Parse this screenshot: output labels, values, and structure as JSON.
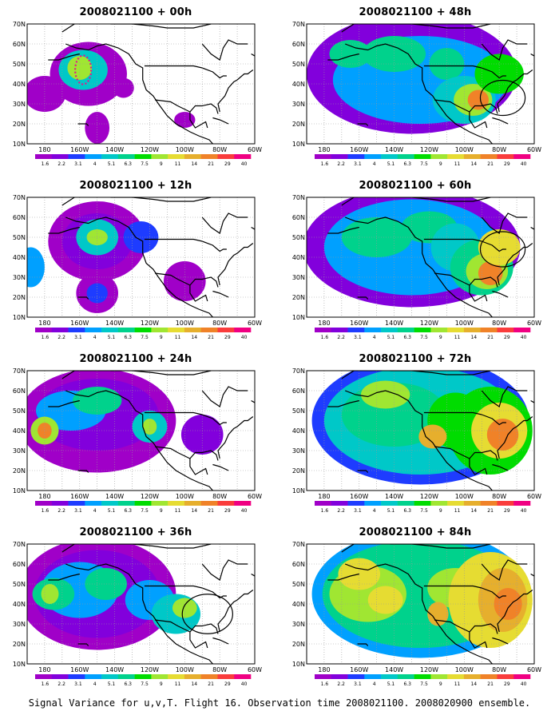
{
  "maps": [
    {
      "title": "2008021100 + 00h",
      "fh": 0
    },
    {
      "title": "2008021100 + 12h",
      "fh": 12
    },
    {
      "title": "2008021100 + 24h",
      "fh": 24
    },
    {
      "title": "2008021100 + 36h",
      "fh": 36
    },
    {
      "title": "2008021100 + 48h",
      "fh": 48
    },
    {
      "title": "2008021100 + 60h",
      "fh": 60
    },
    {
      "title": "2008021100 + 72h",
      "fh": 72
    },
    {
      "title": "2008021100 + 84h",
      "fh": 84
    }
  ],
  "lat_labels": [
    "70N",
    "60N",
    "50N",
    "40N",
    "30N",
    "20N",
    "10N"
  ],
  "lon_labels": [
    "180",
    "160W",
    "140W",
    "120W",
    "100W",
    "80W",
    "60W"
  ],
  "colorbar": {
    "labels": [
      "1.6",
      "2.2",
      "3.1",
      "4",
      "5.1",
      "6.3",
      "7.5",
      "9",
      "11",
      "14",
      "21",
      "29",
      "40"
    ],
    "colors": [
      "#a000c8",
      "#8200dc",
      "#1e3cff",
      "#00a0ff",
      "#00c8c8",
      "#00d28c",
      "#00dc00",
      "#a0e632",
      "#e6dc32",
      "#e6af2d",
      "#f08228",
      "#fa3c3c",
      "#f00082"
    ]
  },
  "caption": "Signal Variance for u,v,T. Flight 16. Observation time 2008021100. 2008020900 ensemble."
}
